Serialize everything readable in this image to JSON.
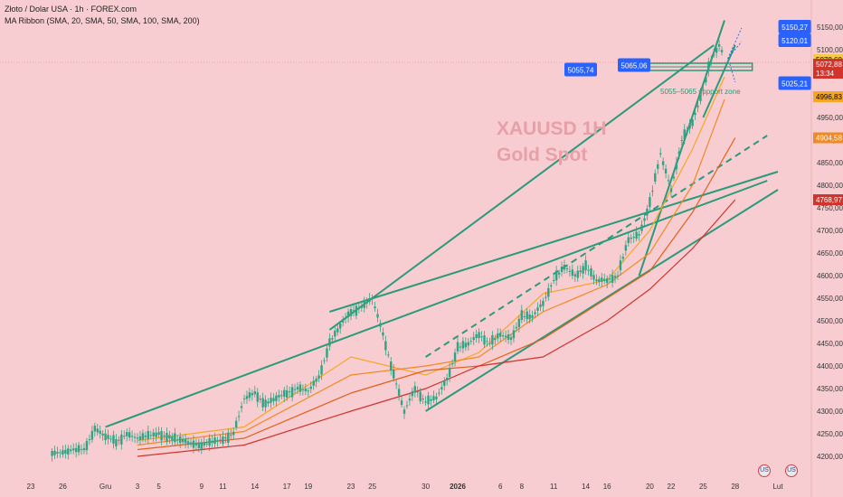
{
  "header": {
    "title": "Złoto / Dolar USA · 1h · FOREX.com",
    "indicator": "MA Ribbon (SMA, 20, SMA, 50, SMA, 100, SMA, 200)"
  },
  "watermark": {
    "line1": "XAUUSD 1H",
    "line2": "Gold Spot"
  },
  "colors": {
    "background": "#f8cdd1",
    "candle": "#2fa383",
    "trendline": "#2a9a7a",
    "ma20": "#f5a623",
    "ma50": "#f08a24",
    "ma100": "#e0611a",
    "ma200": "#d0342c",
    "label_blue": "#2962ff"
  },
  "chart_data": {
    "type": "line",
    "title": "XAUUSD 1H",
    "subtitle": "Gold Spot",
    "xlabel": "",
    "ylabel": "",
    "ylim": [
      4180,
      5180
    ],
    "grid": false,
    "x_ticks": [
      {
        "label": "23",
        "x": 0
      },
      {
        "label": "26",
        "x": 3
      },
      {
        "label": "Gru",
        "x": 7
      },
      {
        "label": "3",
        "x": 10
      },
      {
        "label": "5",
        "x": 12
      },
      {
        "label": "9",
        "x": 16
      },
      {
        "label": "11",
        "x": 18
      },
      {
        "label": "14",
        "x": 21
      },
      {
        "label": "17",
        "x": 24
      },
      {
        "label": "19",
        "x": 26
      },
      {
        "label": "23",
        "x": 30
      },
      {
        "label": "25",
        "x": 32
      },
      {
        "label": "30",
        "x": 37
      },
      {
        "label": "2026",
        "x": 40
      },
      {
        "label": "6",
        "x": 44
      },
      {
        "label": "8",
        "x": 46
      },
      {
        "label": "11",
        "x": 49
      },
      {
        "label": "14",
        "x": 52
      },
      {
        "label": "16",
        "x": 54
      },
      {
        "label": "20",
        "x": 58
      },
      {
        "label": "22",
        "x": 60
      },
      {
        "label": "25",
        "x": 63
      },
      {
        "label": "28",
        "x": 66
      },
      {
        "label": "Lut",
        "x": 70
      }
    ],
    "y_ticks": [
      4200,
      4250,
      4300,
      4350,
      4400,
      4450,
      4500,
      4550,
      4600,
      4650,
      4700,
      4750,
      4800,
      4850,
      4900,
      4950,
      5000,
      5050,
      5100,
      5150
    ],
    "price_series": {
      "name": "XAUUSD",
      "x": [
        2,
        4,
        5,
        6,
        7,
        8,
        9,
        10,
        12,
        14,
        16,
        18,
        19,
        20,
        21,
        22,
        23,
        24,
        25,
        26,
        27,
        28,
        29,
        30,
        31,
        32,
        33,
        34,
        35,
        36,
        37,
        38,
        39,
        40,
        41,
        42,
        43,
        44,
        45,
        46,
        47,
        48,
        49,
        50,
        51,
        52,
        53,
        54,
        55,
        56,
        57,
        58,
        59,
        60,
        61,
        62,
        63,
        63.5,
        64,
        64.5,
        65
      ],
      "y": [
        4205,
        4215,
        4215,
        4260,
        4245,
        4232,
        4248,
        4240,
        4250,
        4235,
        4225,
        4238,
        4250,
        4328,
        4340,
        4315,
        4330,
        4340,
        4350,
        4345,
        4375,
        4450,
        4490,
        4520,
        4530,
        4550,
        4470,
        4380,
        4300,
        4350,
        4320,
        4330,
        4370,
        4440,
        4450,
        4470,
        4450,
        4470,
        4460,
        4510,
        4510,
        4540,
        4590,
        4620,
        4600,
        4620,
        4590,
        4590,
        4600,
        4680,
        4690,
        4760,
        4870,
        4790,
        4900,
        4940,
        5010,
        5060,
        5090,
        5110,
        5085
      ]
    },
    "moving_averages": [
      {
        "name": "SMA 20",
        "x": [
          10,
          20,
          30,
          37,
          42,
          48,
          54,
          58,
          62,
          65
        ],
        "y": [
          4235,
          4265,
          4420,
          4380,
          4430,
          4560,
          4590,
          4700,
          4880,
          5040
        ]
      },
      {
        "name": "SMA 50",
        "x": [
          10,
          20,
          30,
          37,
          42,
          48,
          54,
          58,
          62,
          65
        ],
        "y": [
          4225,
          4255,
          4380,
          4400,
          4420,
          4520,
          4580,
          4650,
          4800,
          4990
        ]
      },
      {
        "name": "SMA 100",
        "x": [
          10,
          20,
          30,
          37,
          42,
          48,
          54,
          58,
          62,
          66
        ],
        "y": [
          4215,
          4240,
          4340,
          4390,
          4400,
          4460,
          4550,
          4610,
          4740,
          4905
        ]
      },
      {
        "name": "SMA 200",
        "x": [
          10,
          20,
          30,
          37,
          42,
          48,
          54,
          58,
          62,
          66
        ],
        "y": [
          4200,
          4225,
          4300,
          4350,
          4400,
          4420,
          4500,
          4570,
          4660,
          4768
        ]
      }
    ],
    "trendlines": [
      {
        "x": [
          7,
          69
        ],
        "y": [
          4265,
          4810
        ]
      },
      {
        "x": [
          28,
          64
        ],
        "y": [
          4480,
          5110
        ]
      },
      {
        "x": [
          28,
          70
        ],
        "y": [
          4520,
          4830
        ]
      },
      {
        "x": [
          37,
          70
        ],
        "y": [
          4300,
          4790
        ]
      },
      {
        "x": [
          57,
          65
        ],
        "y": [
          4600,
          5165
        ]
      },
      {
        "x": [
          63,
          66
        ],
        "y": [
          4950,
          5110
        ]
      }
    ],
    "price_labels": [
      {
        "value": "5150,27",
        "price": 5150,
        "x": 67
      },
      {
        "value": "5120,01",
        "price": 5120,
        "x": 67
      },
      {
        "value": "5025,21",
        "price": 5025,
        "x": 67
      },
      {
        "value": "5065,06",
        "price": 5065,
        "x": 55
      },
      {
        "value": "5055,74",
        "price": 5055,
        "x": 50
      }
    ],
    "axis_badges": [
      {
        "value": "5078,60",
        "price": 5078,
        "color": "#f6c94a",
        "text": "#000"
      },
      {
        "value": "5072,88",
        "price": 5068,
        "color": "#d0342c",
        "text": "#fff",
        "sub": "13:34"
      },
      {
        "value": "4996,83",
        "price": 4996,
        "color": "#f5a623",
        "text": "#000"
      },
      {
        "value": "4904,58",
        "price": 4905,
        "color": "#f08a24",
        "text": "#fff"
      },
      {
        "value": "4768,97",
        "price": 4768,
        "color": "#d0342c",
        "text": "#fff"
      }
    ],
    "annotations": [
      {
        "text": "5055–5065 support zone",
        "price": 5026,
        "x": 60
      }
    ]
  }
}
